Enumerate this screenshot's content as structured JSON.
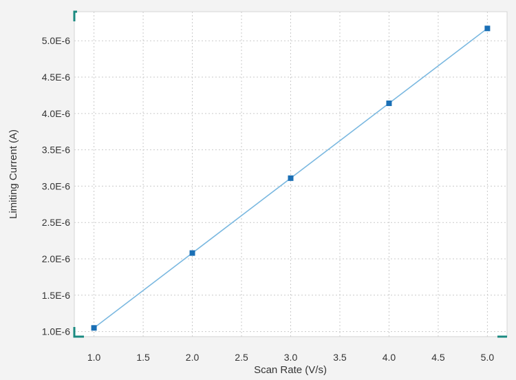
{
  "chart_data": {
    "type": "line",
    "title": "",
    "xlabel": "Scan Rate (V/s)",
    "ylabel": "Limiting Current (A)",
    "xlim": [
      0.8,
      5.2
    ],
    "ylim": [
      9.3e-07,
      5.4e-06
    ],
    "x_ticks": [
      1.0,
      1.5,
      2.0,
      2.5,
      3.0,
      3.5,
      4.0,
      4.5,
      5.0
    ],
    "x_tick_labels": [
      "1.0",
      "1.5",
      "2.0",
      "2.5",
      "3.0",
      "3.5",
      "4.0",
      "4.5",
      "5.0"
    ],
    "y_ticks": [
      1e-06,
      1.5e-06,
      2e-06,
      2.5e-06,
      3e-06,
      3.5e-06,
      4e-06,
      4.5e-06,
      5e-06
    ],
    "y_tick_labels": [
      "1.0E-6",
      "1.5E-6",
      "2.0E-6",
      "2.5E-6",
      "3.0E-6",
      "3.5E-6",
      "4.0E-6",
      "4.5E-6",
      "5.0E-6"
    ],
    "grid": true,
    "series": [
      {
        "x": [
          1.0,
          2.0,
          3.0,
          4.0,
          5.0
        ],
        "y": [
          1.05e-06,
          2.08e-06,
          3.11e-06,
          4.14e-06,
          5.17e-06
        ],
        "line_color": "#7ab8e0",
        "marker_color": "#1a6fb5",
        "marker": "square"
      }
    ],
    "frame_color": "#1a8a80"
  }
}
